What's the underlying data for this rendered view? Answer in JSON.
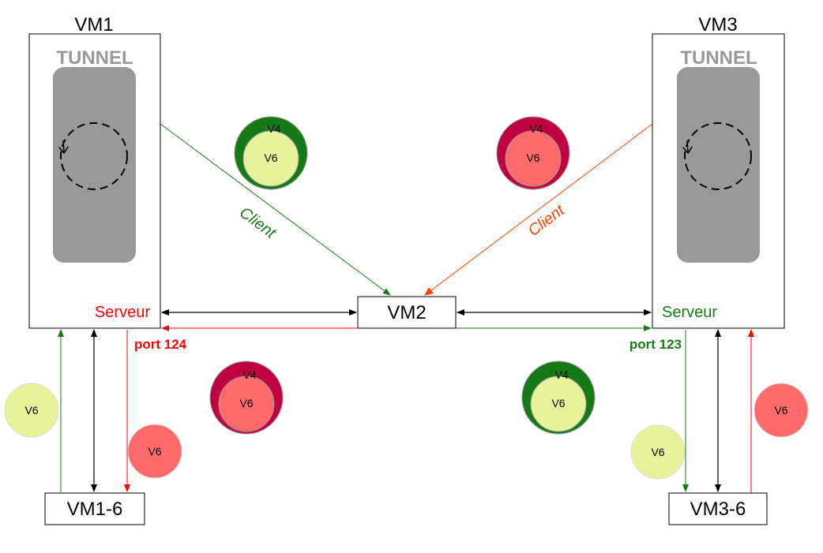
{
  "colors": {
    "green": "#1a7a1a",
    "red": "#ff0000",
    "orange": "#ff4000",
    "black": "#000000",
    "tunnel_gray": "#999999",
    "v4_green": "#157a15",
    "v4_red": "#c00040",
    "v6_light": "#e8f29a",
    "v6_pink": "#ff6b6b"
  },
  "nodes": {
    "vm1": {
      "title": "VM1",
      "tunnel_label": "TUNNEL",
      "role_label": "Serveur",
      "port_label": "port 124"
    },
    "vm3": {
      "title": "VM3",
      "tunnel_label": "TUNNEL",
      "role_label": "Serveur",
      "port_label": "port 123"
    },
    "vm2": {
      "label": "VM2"
    },
    "vm1_6": {
      "label": "VM1-6"
    },
    "vm3_6": {
      "label": "VM3-6"
    }
  },
  "edges": {
    "client_left_label": "Client",
    "client_right_label": "Client"
  },
  "badges": {
    "top_left": {
      "outer": "V4",
      "inner": "V6"
    },
    "top_right": {
      "outer": "V4",
      "inner": "V6"
    },
    "mid_left": {
      "outer": "V4",
      "inner": "V6"
    },
    "mid_right": {
      "outer": "V4",
      "inner": "V6"
    },
    "vm1_6_v6_up": "V6",
    "vm1_6_v6_down": "V6",
    "vm3_6_v6_down": "V6",
    "vm3_6_v6_up": "V6"
  }
}
